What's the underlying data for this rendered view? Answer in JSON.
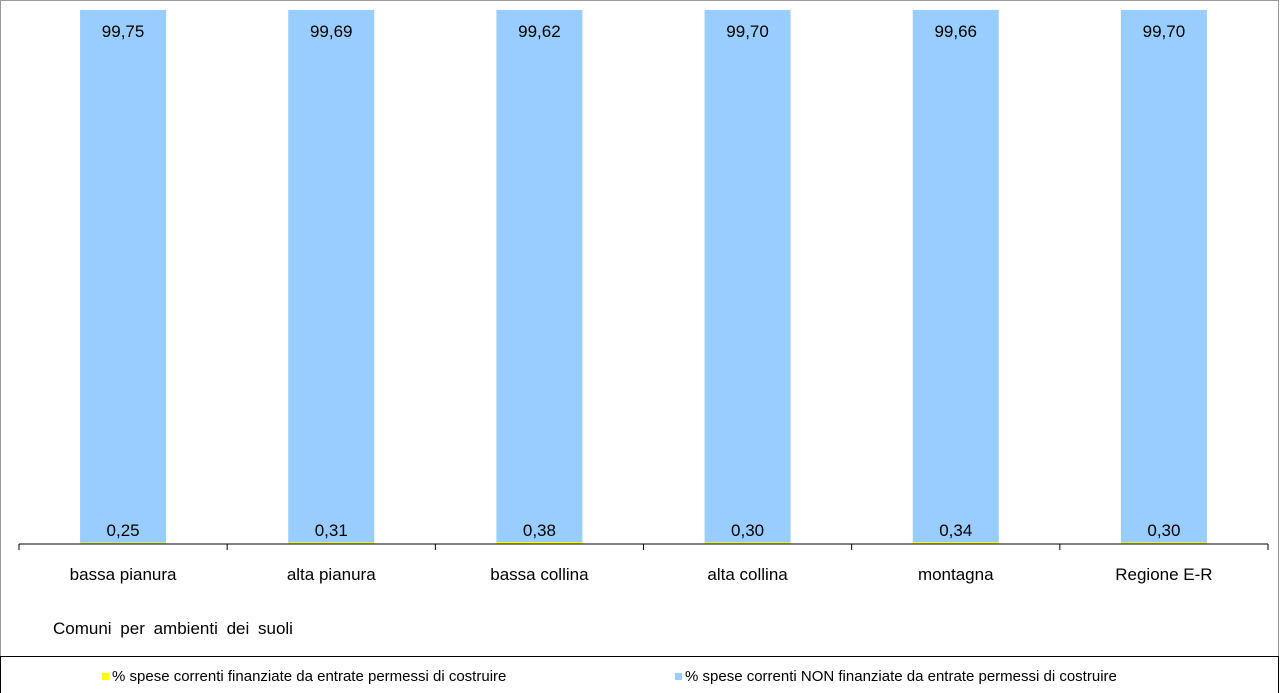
{
  "chart_data": {
    "type": "bar",
    "stacked": true,
    "percent_stacked": true,
    "categories": [
      "bassa pianura",
      "alta pianura",
      "bassa collina",
      "alta collina",
      "montagna",
      "Regione E-R"
    ],
    "series": [
      {
        "name": "% spese correnti finanziate da entrate permessi di costruire",
        "color": "#ffff00",
        "values": [
          0.25,
          0.31,
          0.38,
          0.3,
          0.34,
          0.3
        ],
        "labels": [
          "0,25",
          "0,31",
          "0,38",
          "0,30",
          "0,34",
          "0,30"
        ]
      },
      {
        "name": "% spese correnti NON finanziate da entrate permessi di costruire",
        "color": "#99ccff",
        "values": [
          99.75,
          99.69,
          99.62,
          99.7,
          99.66,
          99.7
        ],
        "labels": [
          "99,75",
          "99,69",
          "99,62",
          "99,70",
          "99,66",
          "99,70"
        ]
      }
    ],
    "xlabel": "Comuni per ambienti dei suoli",
    "ylabel": "",
    "ylim": [
      0,
      100
    ],
    "grid": false,
    "legend": "bottom"
  }
}
